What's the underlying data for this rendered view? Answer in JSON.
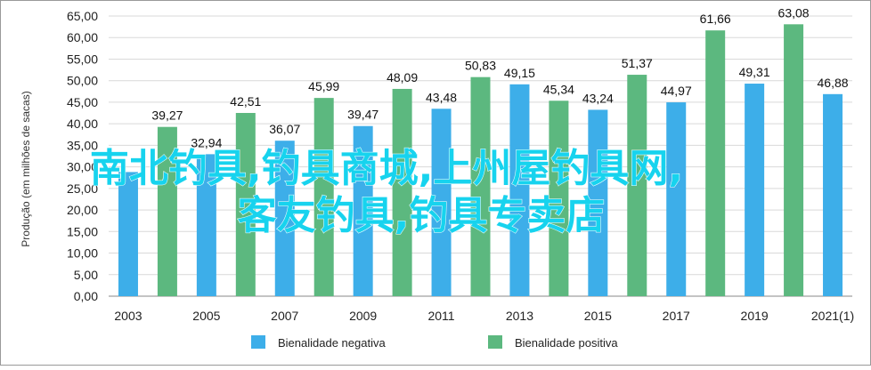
{
  "chart_data": {
    "type": "bar",
    "ylabel": "Produção (em milhões de sacas)",
    "ylim": [
      0,
      65
    ],
    "ytick_step": 5,
    "ytick_labels": [
      "0,00",
      "5,00",
      "10,00",
      "15,00",
      "20,00",
      "25,00",
      "30,00",
      "35,00",
      "40,00",
      "45,00",
      "50,00",
      "55,00",
      "60,00",
      "65,00"
    ],
    "xtick_labels": [
      "2003",
      "2005",
      "2007",
      "2009",
      "2011",
      "2013",
      "2015",
      "2017",
      "2019",
      "2021(1)"
    ],
    "grid": true,
    "legend_position": "bottom",
    "series": [
      {
        "name": "Bienalidade negativa",
        "color": "#3daee9",
        "values": [
          28.8,
          32.94,
          36.07,
          39.47,
          43.48,
          49.15,
          43.24,
          44.97,
          49.31,
          46.88
        ],
        "labels": [
          "",
          "32,94",
          "36,07",
          "39,47",
          "43,48",
          "49,15",
          "43,24",
          "44,97",
          "49,31",
          "46,88"
        ]
      },
      {
        "name": "Bienalidade positiva",
        "color": "#5cb87f",
        "values": [
          39.27,
          42.51,
          45.99,
          48.09,
          50.83,
          45.34,
          51.37,
          61.66,
          63.08
        ],
        "labels": [
          "39,27",
          "42,51",
          "45,99",
          "48,09",
          "50,83",
          "45,34",
          "51,37",
          "61,66",
          "63,08"
        ]
      }
    ]
  },
  "overlay": {
    "line1": "南北钓具,钓具商城,上州屋钓具网,",
    "line2": "客友钓具,钓具专卖店",
    "color": "#17d3ee"
  }
}
